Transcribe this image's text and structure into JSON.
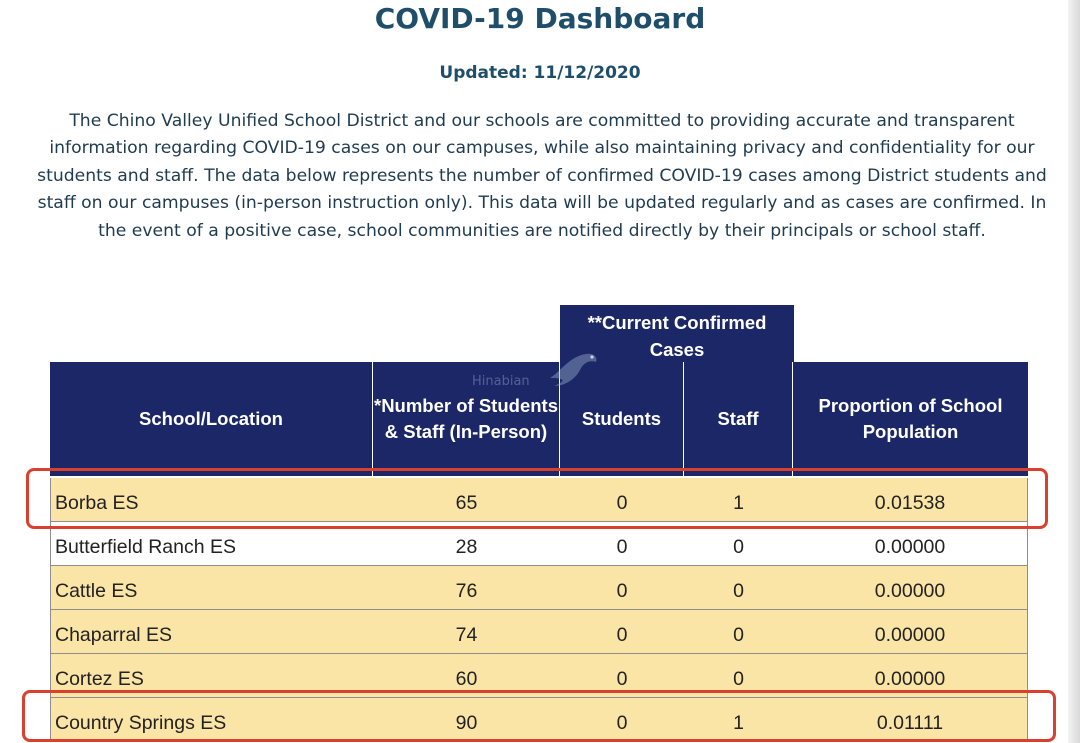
{
  "page": {
    "title": "COVID-19 Dashboard",
    "updated": "Updated: 11/12/2020",
    "intro": "The Chino Valley Unified School District and our schools are committed to providing accurate and transparent information regarding COVID-19 cases on our campuses, while also maintaining privacy and confidentiality for our students and staff. The data below represents the number of confirmed COVID-19 cases among District students and staff on our campuses (in-person instruction only). This data will be updated regularly and as cases are confirmed. In the event of a positive case, school communities are notified directly by their principals or school staff."
  },
  "table": {
    "group_header": "**Current Confirmed Cases",
    "headers": {
      "school": "School/Location",
      "count": "*Number of Students & Staff (In-Person)",
      "students": "Students",
      "staff": "Staff",
      "proportion": "Proportion of School Population"
    },
    "rows": [
      {
        "school": "Borba ES",
        "count": "65",
        "students": "0",
        "staff": "1",
        "proportion": "0.01538"
      },
      {
        "school": "Butterfield Ranch ES",
        "count": "28",
        "students": "0",
        "staff": "0",
        "proportion": "0.00000"
      },
      {
        "school": "Cattle ES",
        "count": "76",
        "students": "0",
        "staff": "0",
        "proportion": "0.00000"
      },
      {
        "school": "Chaparral ES",
        "count": "74",
        "students": "0",
        "staff": "0",
        "proportion": "0.00000"
      },
      {
        "school": "Cortez ES",
        "count": "60",
        "students": "0",
        "staff": "0",
        "proportion": "0.00000"
      },
      {
        "school": "Country Springs ES",
        "count": "90",
        "students": "0",
        "staff": "1",
        "proportion": "0.01111"
      }
    ]
  },
  "watermark": {
    "text": "Hinabian"
  },
  "colors": {
    "title": "#1f4e6b",
    "header_bg": "#1b2767",
    "row_yellow": "#fbe5a6",
    "highlight": "#d9412e"
  }
}
